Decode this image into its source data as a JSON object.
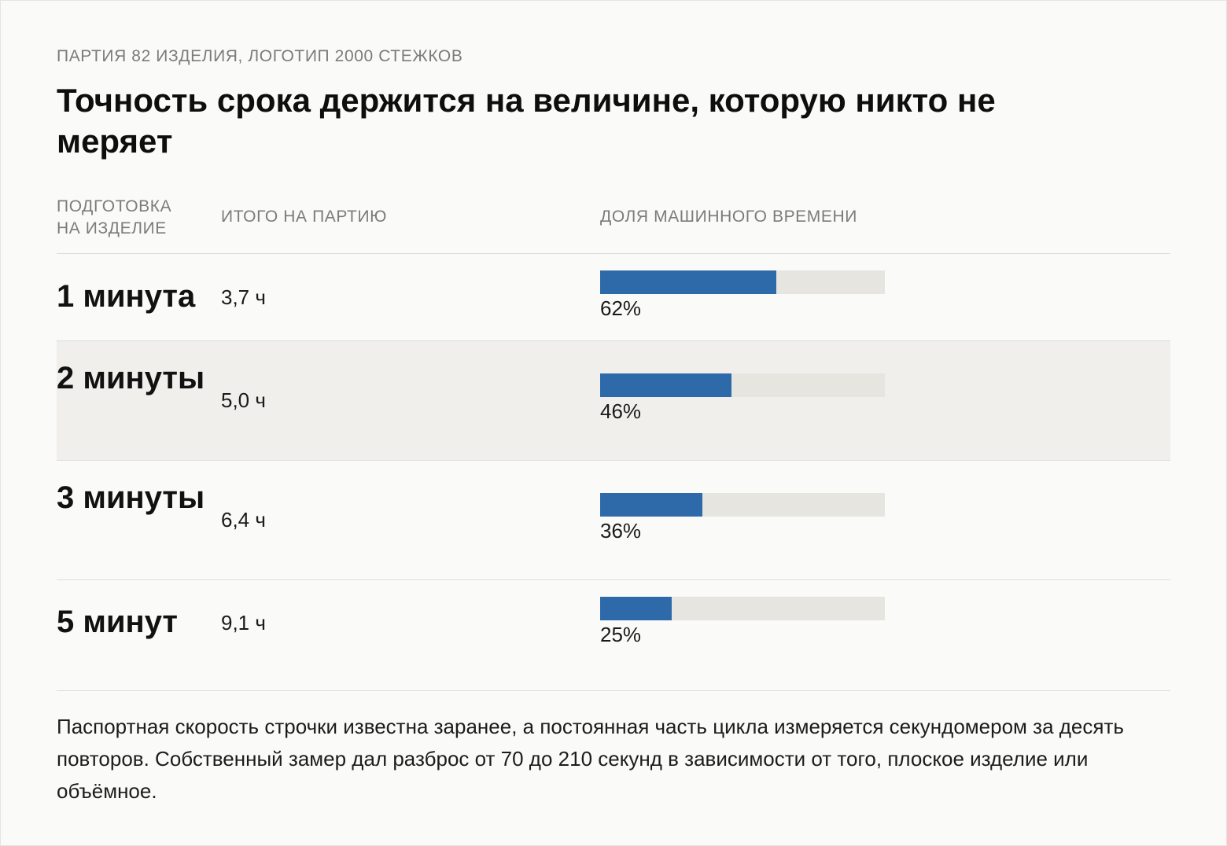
{
  "kicker": "ПАРТИЯ 82 ИЗДЕЛИЯ, ЛОГОТИП 2000 СТЕЖКОВ",
  "title": "Точность срока держится на величине, которую никто не меряет",
  "columns": {
    "prep": "ПОДГОТОВКА НА ИЗДЕЛИЕ",
    "total": "ИТОГО НА ПАРТИЮ",
    "share": "ДОЛЯ МАШИННОГО ВРЕМЕНИ"
  },
  "chart_data": {
    "type": "bar",
    "categories": [
      "1 минута",
      "2 минуты",
      "3 минуты",
      "5 минут"
    ],
    "totals": [
      "3,7 ч",
      "5,0 ч",
      "6,4 ч",
      "9,1 ч"
    ],
    "values": [
      62,
      46,
      36,
      25
    ],
    "value_labels": [
      "62%",
      "46%",
      "36%",
      "25%"
    ],
    "ylim": [
      0,
      100
    ],
    "colors": {
      "fill": "#2e6aaa",
      "track": "#e6e5e0"
    }
  },
  "note": "Паспортная скорость строчки известна заранее, а постоянная часть цикла измеряется секундомером за десять повторов. Собственный замер дал разброс от 70 до 210 секунд в зависимости от того, плоское изделие или объёмное."
}
